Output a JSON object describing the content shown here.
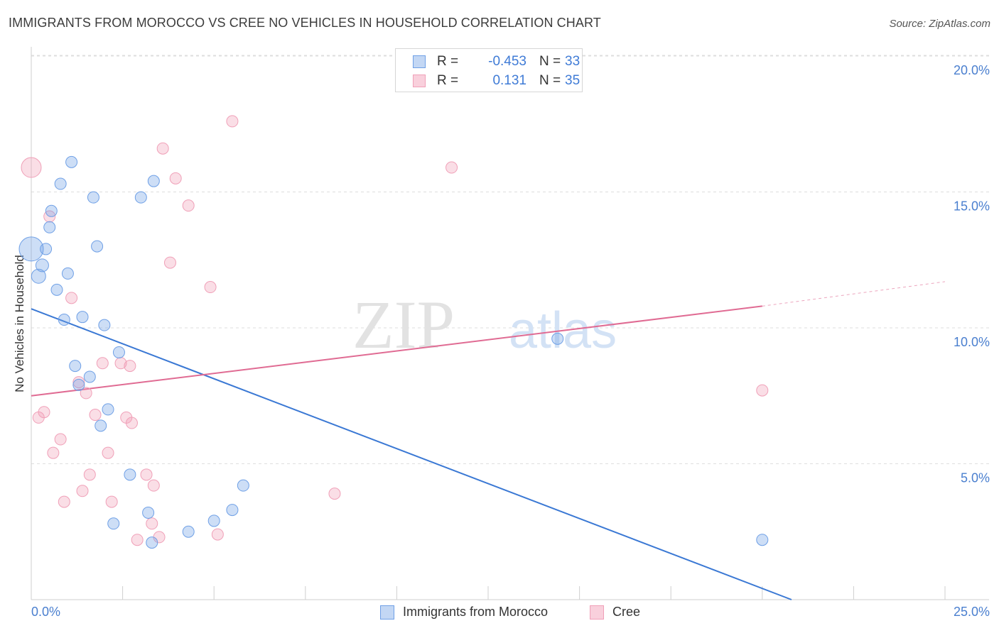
{
  "header": {
    "title": "IMMIGRANTS FROM MOROCCO VS CREE NO VEHICLES IN HOUSEHOLD CORRELATION CHART",
    "source": "Source: ZipAtlas.com"
  },
  "watermark": {
    "part1": "ZIP",
    "part2": "atlas"
  },
  "legend_top": {
    "rows": [
      {
        "r_label": "R =",
        "r_value": "-0.453",
        "n_label": "N =",
        "n_value": "33"
      },
      {
        "r_label": "R =",
        "r_value": "0.131",
        "n_label": "N =",
        "n_value": "35"
      }
    ]
  },
  "chart_data": {
    "type": "scatter",
    "title": "IMMIGRANTS FROM MOROCCO VS CREE NO VEHICLES IN HOUSEHOLD CORRELATION CHART",
    "xlabel": "",
    "ylabel": "No Vehicles in Household",
    "xlim": [
      0,
      25
    ],
    "ylim": [
      0,
      20
    ],
    "x_tick_labels": [
      "0.0%",
      "25.0%"
    ],
    "y_ticks": [
      5,
      10,
      15,
      20
    ],
    "y_tick_labels": [
      "5.0%",
      "10.0%",
      "15.0%",
      "20.0%"
    ],
    "grid": true,
    "legend": [
      "Immigrants from Morocco",
      "Cree"
    ],
    "colors": {
      "morocco": "#6fa0e6",
      "cree": "#f0a0b8",
      "morocco_line": "#3a78d4",
      "cree_line": "#e06b93"
    },
    "series": [
      {
        "name": "Immigrants from Morocco",
        "points": [
          [
            0.0,
            12.9
          ],
          [
            0.2,
            11.9
          ],
          [
            0.3,
            12.3
          ],
          [
            0.4,
            12.9
          ],
          [
            0.5,
            13.7
          ],
          [
            0.55,
            14.3
          ],
          [
            0.7,
            11.4
          ],
          [
            0.8,
            15.3
          ],
          [
            0.9,
            10.3
          ],
          [
            1.0,
            12.0
          ],
          [
            1.1,
            16.1
          ],
          [
            1.2,
            8.6
          ],
          [
            1.3,
            7.9
          ],
          [
            1.4,
            10.4
          ],
          [
            1.6,
            8.2
          ],
          [
            1.7,
            14.8
          ],
          [
            1.8,
            13.0
          ],
          [
            1.9,
            6.4
          ],
          [
            2.0,
            10.1
          ],
          [
            2.1,
            7.0
          ],
          [
            2.25,
            2.8
          ],
          [
            2.4,
            9.1
          ],
          [
            2.7,
            4.6
          ],
          [
            3.0,
            14.8
          ],
          [
            3.2,
            3.2
          ],
          [
            3.3,
            2.1
          ],
          [
            3.35,
            15.4
          ],
          [
            4.3,
            2.5
          ],
          [
            5.0,
            2.9
          ],
          [
            5.5,
            3.3
          ],
          [
            5.8,
            4.2
          ],
          [
            14.4,
            9.6
          ],
          [
            20.0,
            2.2
          ]
        ],
        "sizes": [
          34,
          20,
          18,
          16,
          16,
          16,
          16,
          16,
          16,
          16,
          16,
          16,
          16,
          16,
          16,
          16,
          16,
          16,
          16,
          16,
          16,
          16,
          16,
          16,
          16,
          16,
          16,
          16,
          16,
          16,
          16,
          16,
          16
        ],
        "trend": {
          "x": [
            0,
            20.8
          ],
          "y": [
            10.7,
            0
          ]
        }
      },
      {
        "name": "Cree",
        "points": [
          [
            0.0,
            15.9
          ],
          [
            0.2,
            6.7
          ],
          [
            0.35,
            6.9
          ],
          [
            0.5,
            14.1
          ],
          [
            0.6,
            5.4
          ],
          [
            0.8,
            5.9
          ],
          [
            0.9,
            3.6
          ],
          [
            1.1,
            11.1
          ],
          [
            1.3,
            8.0
          ],
          [
            1.4,
            4.0
          ],
          [
            1.5,
            7.6
          ],
          [
            1.6,
            4.6
          ],
          [
            1.75,
            6.8
          ],
          [
            1.95,
            8.7
          ],
          [
            2.1,
            5.4
          ],
          [
            2.2,
            3.6
          ],
          [
            2.45,
            8.7
          ],
          [
            2.6,
            6.7
          ],
          [
            2.7,
            8.6
          ],
          [
            2.75,
            6.5
          ],
          [
            2.9,
            2.2
          ],
          [
            3.15,
            4.6
          ],
          [
            3.3,
            2.8
          ],
          [
            3.35,
            4.2
          ],
          [
            3.5,
            2.3
          ],
          [
            3.6,
            16.6
          ],
          [
            3.8,
            12.4
          ],
          [
            3.95,
            15.5
          ],
          [
            4.3,
            14.5
          ],
          [
            4.9,
            11.5
          ],
          [
            5.1,
            2.4
          ],
          [
            5.5,
            17.6
          ],
          [
            8.3,
            3.9
          ],
          [
            11.5,
            15.9
          ],
          [
            20.0,
            7.7
          ]
        ],
        "sizes": [
          28,
          16,
          16,
          16,
          16,
          16,
          16,
          16,
          16,
          16,
          16,
          16,
          16,
          16,
          16,
          16,
          16,
          16,
          16,
          16,
          16,
          16,
          16,
          16,
          16,
          16,
          16,
          16,
          16,
          16,
          16,
          16,
          16,
          16,
          16
        ],
        "trend": {
          "x": [
            0,
            20.0
          ],
          "y": [
            7.5,
            10.8
          ]
        },
        "trend_dashed": {
          "x": [
            20.0,
            25.0
          ],
          "y": [
            10.8,
            11.7
          ]
        }
      }
    ]
  }
}
